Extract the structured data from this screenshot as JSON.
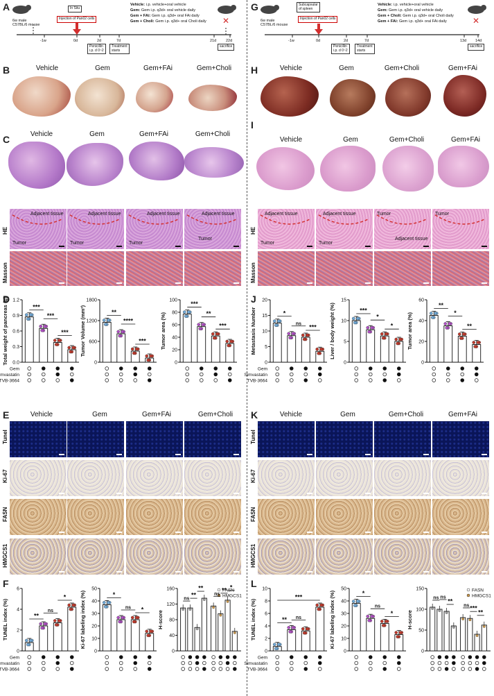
{
  "panels": {
    "A": "A",
    "B": "B",
    "C": "C",
    "D": "D",
    "E": "E",
    "F": "F",
    "G": "G",
    "H": "H",
    "I": "I",
    "J": "J",
    "K": "K",
    "L": "L"
  },
  "left": {
    "timeline": {
      "mouse": "6w male\nC57BL/6 mouse",
      "injection": "Injection of Pan02 cells",
      "route": "In Situ",
      "ticks": [
        "-1w",
        "0d",
        "2d",
        "7d",
        "21d",
        "22d"
      ],
      "penicillin": "Penicillin\ni.p. d 0~2",
      "treatment": "Treatment\nstarts",
      "sacrifice": "sacrifice",
      "legend": [
        {
          "label": "Vehicle:",
          "text": " i.p. vehicle+oral vehicle"
        },
        {
          "label": "Gem:",
          "text": " Gem i.p. q3d+ oral vehicle daily"
        },
        {
          "label": "Gem + FAi:",
          "text": " Gem i.p. q3d+ oral FAi daily"
        },
        {
          "label": "Gem + Choli:",
          "text": " Gem i.p. q3d+ oral Choli daily"
        }
      ]
    },
    "groups": [
      "Vehicle",
      "Gem",
      "Gem+FAi",
      "Gem+Choli"
    ],
    "he_labels": [
      [
        "Adjacent tissue",
        "Tumor"
      ],
      [
        "Adjacent tissue",
        "Tumor"
      ],
      [
        "Adjacent tissue",
        "Tumor"
      ],
      [
        "Tumor",
        "Adjacent tissue"
      ]
    ],
    "row_he": "HE",
    "row_masson": "Masson",
    "ihc_rows": [
      "Tunel",
      "Ki-67",
      "FASN",
      "HMGCS1"
    ]
  },
  "right": {
    "timeline": {
      "mouse": "6w male\nC57BL/6 mouse",
      "injection": "Injection of Pan02 cells",
      "route": "Subcapsular\nof spleen",
      "ticks": [
        "-1w",
        "0d",
        "2d",
        "7d",
        "13d",
        "14d"
      ],
      "penicillin": "Penicillin\ni.p. d 0~2",
      "treatment": "Treatment\nstarts",
      "sacrifice": "sacrifice",
      "legend": [
        {
          "label": "Vehicle:",
          "text": " i.p. vehicle+oral vehicle"
        },
        {
          "label": "Gem:",
          "text": " Gem i.p. q3d+ oral vehicle daily"
        },
        {
          "label": "Gem + Choli:",
          "text": " Gem i.p. q3d+ oral Choli daily"
        },
        {
          "label": "Gem + FAi:",
          "text": " Gem i.p. q3d+ oral FAi daily"
        }
      ]
    },
    "groups": [
      "Vehicle",
      "Gem",
      "Gem+Choli",
      "Gem+FAi"
    ],
    "he_labels": [
      [
        "Adjacent tissue",
        "Tumor"
      ],
      [
        "Adjacent tissue",
        "Tumor"
      ],
      [
        "Tumor",
        "Adjacent tissue"
      ],
      [
        "Tumor",
        ""
      ]
    ],
    "row_he": "HE",
    "row_masson": "Masson",
    "ihc_rows": [
      "Tunel",
      "Ki-67",
      "FASN",
      "HMGCS1"
    ]
  },
  "treatment_table": {
    "rows": [
      "Gem",
      "Simvastatin",
      "TVB-3664"
    ],
    "matrix": [
      [
        0,
        1,
        1,
        1
      ],
      [
        0,
        0,
        1,
        0
      ],
      [
        0,
        0,
        0,
        1
      ]
    ]
  },
  "treatment_table_right": {
    "rows": [
      "Gem",
      "Simvastatin",
      "TVB-3664"
    ],
    "matrix": [
      [
        0,
        1,
        1,
        1
      ],
      [
        0,
        0,
        0,
        1
      ],
      [
        0,
        0,
        1,
        0
      ]
    ]
  },
  "colors": {
    "vehicle": "#6fa8d6",
    "gem": "#b04fc4",
    "choli": "#c0392b",
    "fai": "#c0392b",
    "fasn": "#9e9e9e",
    "hmgcs1": "#c8964a"
  },
  "chart_data": [
    {
      "id": "D1",
      "type": "bar",
      "ylabel": "Total weight of pancreas (g)",
      "ylim": [
        0,
        1.2
      ],
      "yticks": [
        0,
        0.3,
        0.6,
        0.9,
        1.2
      ],
      "tick_labels": [
        "0.0",
        "0.3",
        "0.6",
        "0.9",
        "1.2"
      ],
      "values": [
        0.87,
        0.65,
        0.38,
        0.24
      ],
      "sig": [
        {
          "a": 0,
          "b": 1,
          "t": "***"
        },
        {
          "a": 1,
          "b": 2,
          "t": "***"
        },
        {
          "a": 2,
          "b": 3,
          "t": "***"
        }
      ]
    },
    {
      "id": "D2",
      "type": "bar",
      "ylabel": "Tumor Volume (mm³)",
      "ylim": [
        0,
        1800
      ],
      "yticks": [
        0,
        600,
        1200,
        1800
      ],
      "tick_labels": [
        "0",
        "600",
        "1200",
        "1800"
      ],
      "values": [
        1150,
        820,
        320,
        120
      ],
      "sig": [
        {
          "a": 0,
          "b": 1,
          "t": "**"
        },
        {
          "a": 1,
          "b": 2,
          "t": "****"
        },
        {
          "a": 2,
          "b": 3,
          "t": "***"
        }
      ]
    },
    {
      "id": "D3",
      "type": "bar",
      "ylabel": "Tumor area (%)",
      "ylim": [
        0,
        100
      ],
      "yticks": [
        0,
        20,
        40,
        60,
        80,
        100
      ],
      "tick_labels": [
        "0",
        "20",
        "40",
        "60",
        "80",
        "100"
      ],
      "values": [
        77,
        57,
        42,
        30
      ],
      "sig": [
        {
          "a": 0,
          "b": 1,
          "t": "***"
        },
        {
          "a": 1,
          "b": 2,
          "t": "**"
        },
        {
          "a": 2,
          "b": 3,
          "t": "***"
        }
      ]
    },
    {
      "id": "J1",
      "type": "bar",
      "ylabel": "Metastasis Number",
      "ylim": [
        0,
        20
      ],
      "yticks": [
        0,
        5,
        10,
        15,
        20
      ],
      "tick_labels": [
        "0",
        "5",
        "10",
        "15",
        "20"
      ],
      "values": [
        12.5,
        8.5,
        8,
        3.5
      ],
      "sig": [
        {
          "a": 0,
          "b": 1,
          "t": "*"
        },
        {
          "a": 1,
          "b": 2,
          "t": "ns"
        },
        {
          "a": 2,
          "b": 3,
          "t": "***"
        }
      ]
    },
    {
      "id": "J2",
      "type": "bar",
      "ylabel": "Liver / body weight (%)",
      "ylim": [
        0,
        15
      ],
      "yticks": [
        0,
        5,
        10,
        15
      ],
      "tick_labels": [
        "0",
        "5",
        "10",
        "15"
      ],
      "values": [
        10,
        7.8,
        6.3,
        5
      ],
      "sig": [
        {
          "a": 0,
          "b": 1,
          "t": "***"
        },
        {
          "a": 1,
          "b": 2,
          "t": "*"
        },
        {
          "a": 2,
          "b": 3,
          "t": "*"
        }
      ]
    },
    {
      "id": "J3",
      "type": "bar",
      "ylabel": "Tumor area (%)",
      "ylim": [
        0,
        60
      ],
      "yticks": [
        0,
        20,
        40,
        60
      ],
      "tick_labels": [
        "0",
        "20",
        "40",
        "60"
      ],
      "values": [
        45,
        35,
        25,
        17
      ],
      "sig": [
        {
          "a": 0,
          "b": 1,
          "t": "**"
        },
        {
          "a": 1,
          "b": 2,
          "t": "*"
        },
        {
          "a": 2,
          "b": 3,
          "t": "**"
        }
      ]
    },
    {
      "id": "F1",
      "type": "bar",
      "ylabel": "TUNEL index (%)",
      "ylim": [
        0,
        6
      ],
      "yticks": [
        0,
        2,
        4,
        6
      ],
      "tick_labels": [
        "0",
        "2",
        "4",
        "6"
      ],
      "values": [
        0.8,
        2.4,
        2.7,
        4.2
      ],
      "sig": [
        {
          "a": 0,
          "b": 1,
          "t": "**"
        },
        {
          "a": 1,
          "b": 2,
          "t": "ns"
        },
        {
          "a": 2,
          "b": 3,
          "t": "*"
        }
      ]
    },
    {
      "id": "F2",
      "type": "bar",
      "ylabel": "Ki-67 labeling index (%)",
      "ylim": [
        0,
        50
      ],
      "yticks": [
        0,
        10,
        20,
        30,
        40,
        50
      ],
      "tick_labels": [
        "0",
        "10",
        "20",
        "30",
        "40",
        "50"
      ],
      "values": [
        37,
        25,
        25,
        14
      ],
      "sig": [
        {
          "a": 0,
          "b": 1,
          "t": "*"
        },
        {
          "a": 1,
          "b": 2,
          "t": "ns"
        },
        {
          "a": 2,
          "b": 3,
          "t": "*"
        }
      ]
    },
    {
      "id": "F3",
      "type": "bar",
      "ylabel": "H-score",
      "ylim": [
        0,
        160
      ],
      "yticks": [
        0,
        40,
        80,
        120,
        160
      ],
      "tick_labels": [
        "0",
        "40",
        "80",
        "120",
        "160"
      ],
      "legend": [
        "FASN",
        "HMGCS1"
      ],
      "series": [
        {
          "name": "FASN",
          "values": [
            110,
            110,
            60,
            135
          ]
        },
        {
          "name": "HMGCS1",
          "values": [
            115,
            95,
            130,
            50
          ]
        }
      ],
      "sig": [
        {
          "a": 0,
          "b": 1,
          "t": "ns"
        },
        {
          "a": 1,
          "b": 2,
          "t": "**"
        },
        {
          "a": 2,
          "b": 3,
          "t": "**"
        },
        {
          "a": 4,
          "b": 5,
          "t": "ns"
        },
        {
          "a": 5,
          "b": 6,
          "t": "**"
        },
        {
          "a": 6,
          "b": 7,
          "t": "*"
        }
      ]
    },
    {
      "id": "L1",
      "type": "bar",
      "ylabel": "TUNEL index (%)",
      "ylim": [
        0,
        10
      ],
      "yticks": [
        0,
        2,
        4,
        6,
        8,
        10
      ],
      "tick_labels": [
        "0",
        "2",
        "4",
        "6",
        "8",
        "10"
      ],
      "values": [
        0.7,
        3.4,
        3.2,
        7
      ],
      "sig": [
        {
          "a": 0,
          "b": 1,
          "t": "**"
        },
        {
          "a": 1,
          "b": 2,
          "t": "ns"
        },
        {
          "a": 0,
          "b": 3,
          "t": "***"
        }
      ]
    },
    {
      "id": "L2",
      "type": "bar",
      "ylabel": "Ki-67 labeling index (%)",
      "ylim": [
        0,
        50
      ],
      "yticks": [
        0,
        10,
        20,
        30,
        40,
        50
      ],
      "tick_labels": [
        "0",
        "10",
        "20",
        "30",
        "40",
        "50"
      ],
      "values": [
        38,
        26,
        22,
        13
      ],
      "sig": [
        {
          "a": 0,
          "b": 1,
          "t": "*"
        },
        {
          "a": 1,
          "b": 2,
          "t": "ns"
        },
        {
          "a": 2,
          "b": 3,
          "t": "*"
        }
      ]
    },
    {
      "id": "L3",
      "type": "bar",
      "ylabel": "H-score",
      "ylim": [
        0,
        150
      ],
      "yticks": [
        0,
        50,
        100,
        150
      ],
      "tick_labels": [
        "0",
        "50",
        "100",
        "150"
      ],
      "legend": [
        "FASN",
        "HMGCS1"
      ],
      "series": [
        {
          "name": "FASN",
          "values": [
            105,
            100,
            95,
            60
          ]
        },
        {
          "name": "HMGCS1",
          "values": [
            80,
            78,
            40,
            62
          ]
        }
      ],
      "sig": [
        {
          "a": 0,
          "b": 1,
          "t": "ns"
        },
        {
          "a": 1,
          "b": 2,
          "t": "ns"
        },
        {
          "a": 2,
          "b": 3,
          "t": "**"
        },
        {
          "a": 4,
          "b": 5,
          "t": "ns"
        },
        {
          "a": 5,
          "b": 6,
          "t": "***"
        },
        {
          "a": 6,
          "b": 7,
          "t": "**"
        }
      ]
    }
  ]
}
